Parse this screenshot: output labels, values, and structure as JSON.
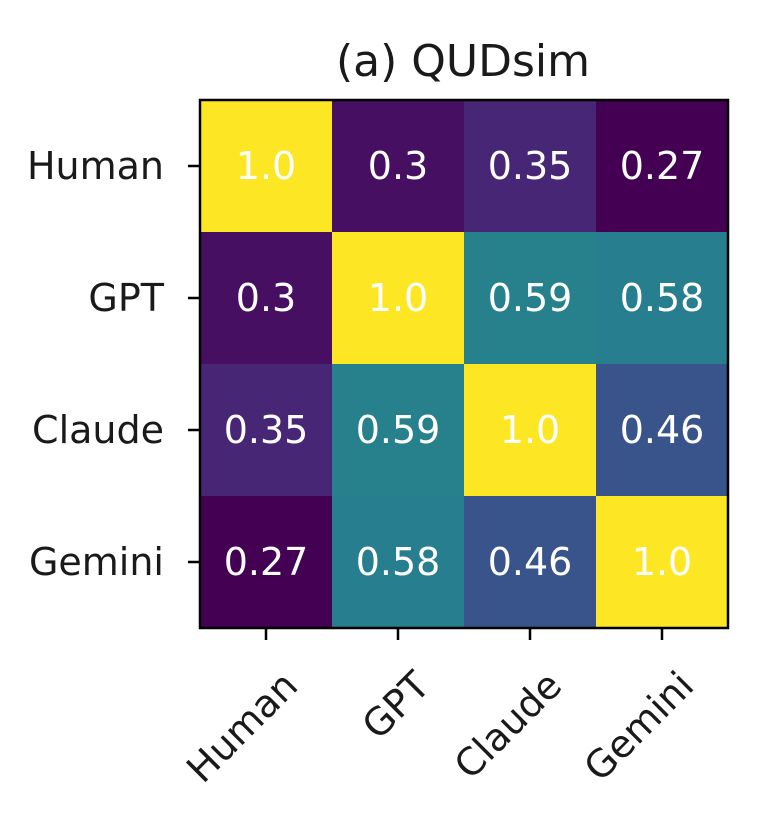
{
  "chart_data": {
    "type": "heatmap",
    "title": "(a) QUDsim",
    "x_categories": [
      "Human",
      "GPT",
      "Claude",
      "Gemini"
    ],
    "y_categories": [
      "Human",
      "GPT",
      "Claude",
      "Gemini"
    ],
    "values": [
      [
        1.0,
        0.3,
        0.35,
        0.27
      ],
      [
        0.3,
        1.0,
        0.59,
        0.58
      ],
      [
        0.35,
        0.59,
        1.0,
        0.46
      ],
      [
        0.27,
        0.58,
        0.46,
        1.0
      ]
    ],
    "cell_labels": [
      [
        "1.0",
        "0.3",
        "0.35",
        "0.27"
      ],
      [
        "0.3",
        "1.0",
        "0.59",
        "0.58"
      ],
      [
        "0.35",
        "0.59",
        "1.0",
        "0.46"
      ],
      [
        "0.27",
        "0.58",
        "0.46",
        "1.0"
      ]
    ],
    "colormap": "viridis",
    "color_range": [
      0.27,
      1.0
    ],
    "label_color": "#ffffff"
  }
}
